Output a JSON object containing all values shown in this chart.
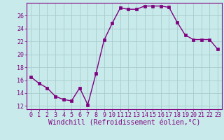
{
  "x": [
    0,
    1,
    2,
    3,
    4,
    5,
    6,
    7,
    8,
    9,
    10,
    11,
    12,
    13,
    14,
    15,
    16,
    17,
    18,
    19,
    20,
    21,
    22,
    23
  ],
  "y": [
    16.5,
    15.5,
    14.8,
    13.5,
    13.0,
    12.8,
    14.8,
    12.2,
    17.0,
    22.2,
    24.8,
    27.2,
    27.0,
    27.0,
    27.5,
    27.5,
    27.5,
    27.3,
    25.0,
    23.0,
    22.3,
    22.3,
    22.3,
    20.8
  ],
  "line_color": "#800080",
  "marker_color": "#800080",
  "bg_color": "#c8eaea",
  "grid_color": "#a8cccc",
  "xlabel": "Windchill (Refroidissement éolien,°C)",
  "ylabel": "",
  "ylim": [
    11.5,
    28
  ],
  "xlim": [
    -0.5,
    23.5
  ],
  "yticks": [
    12,
    14,
    16,
    18,
    20,
    22,
    24,
    26
  ],
  "xticks": [
    0,
    1,
    2,
    3,
    4,
    5,
    6,
    7,
    8,
    9,
    10,
    11,
    12,
    13,
    14,
    15,
    16,
    17,
    18,
    19,
    20,
    21,
    22,
    23
  ],
  "font_color": "#800080",
  "tick_labelsize": 6.0,
  "xlabel_fontsize": 7.0,
  "linewidth": 1.0,
  "markersize": 2.5,
  "marker": "s"
}
